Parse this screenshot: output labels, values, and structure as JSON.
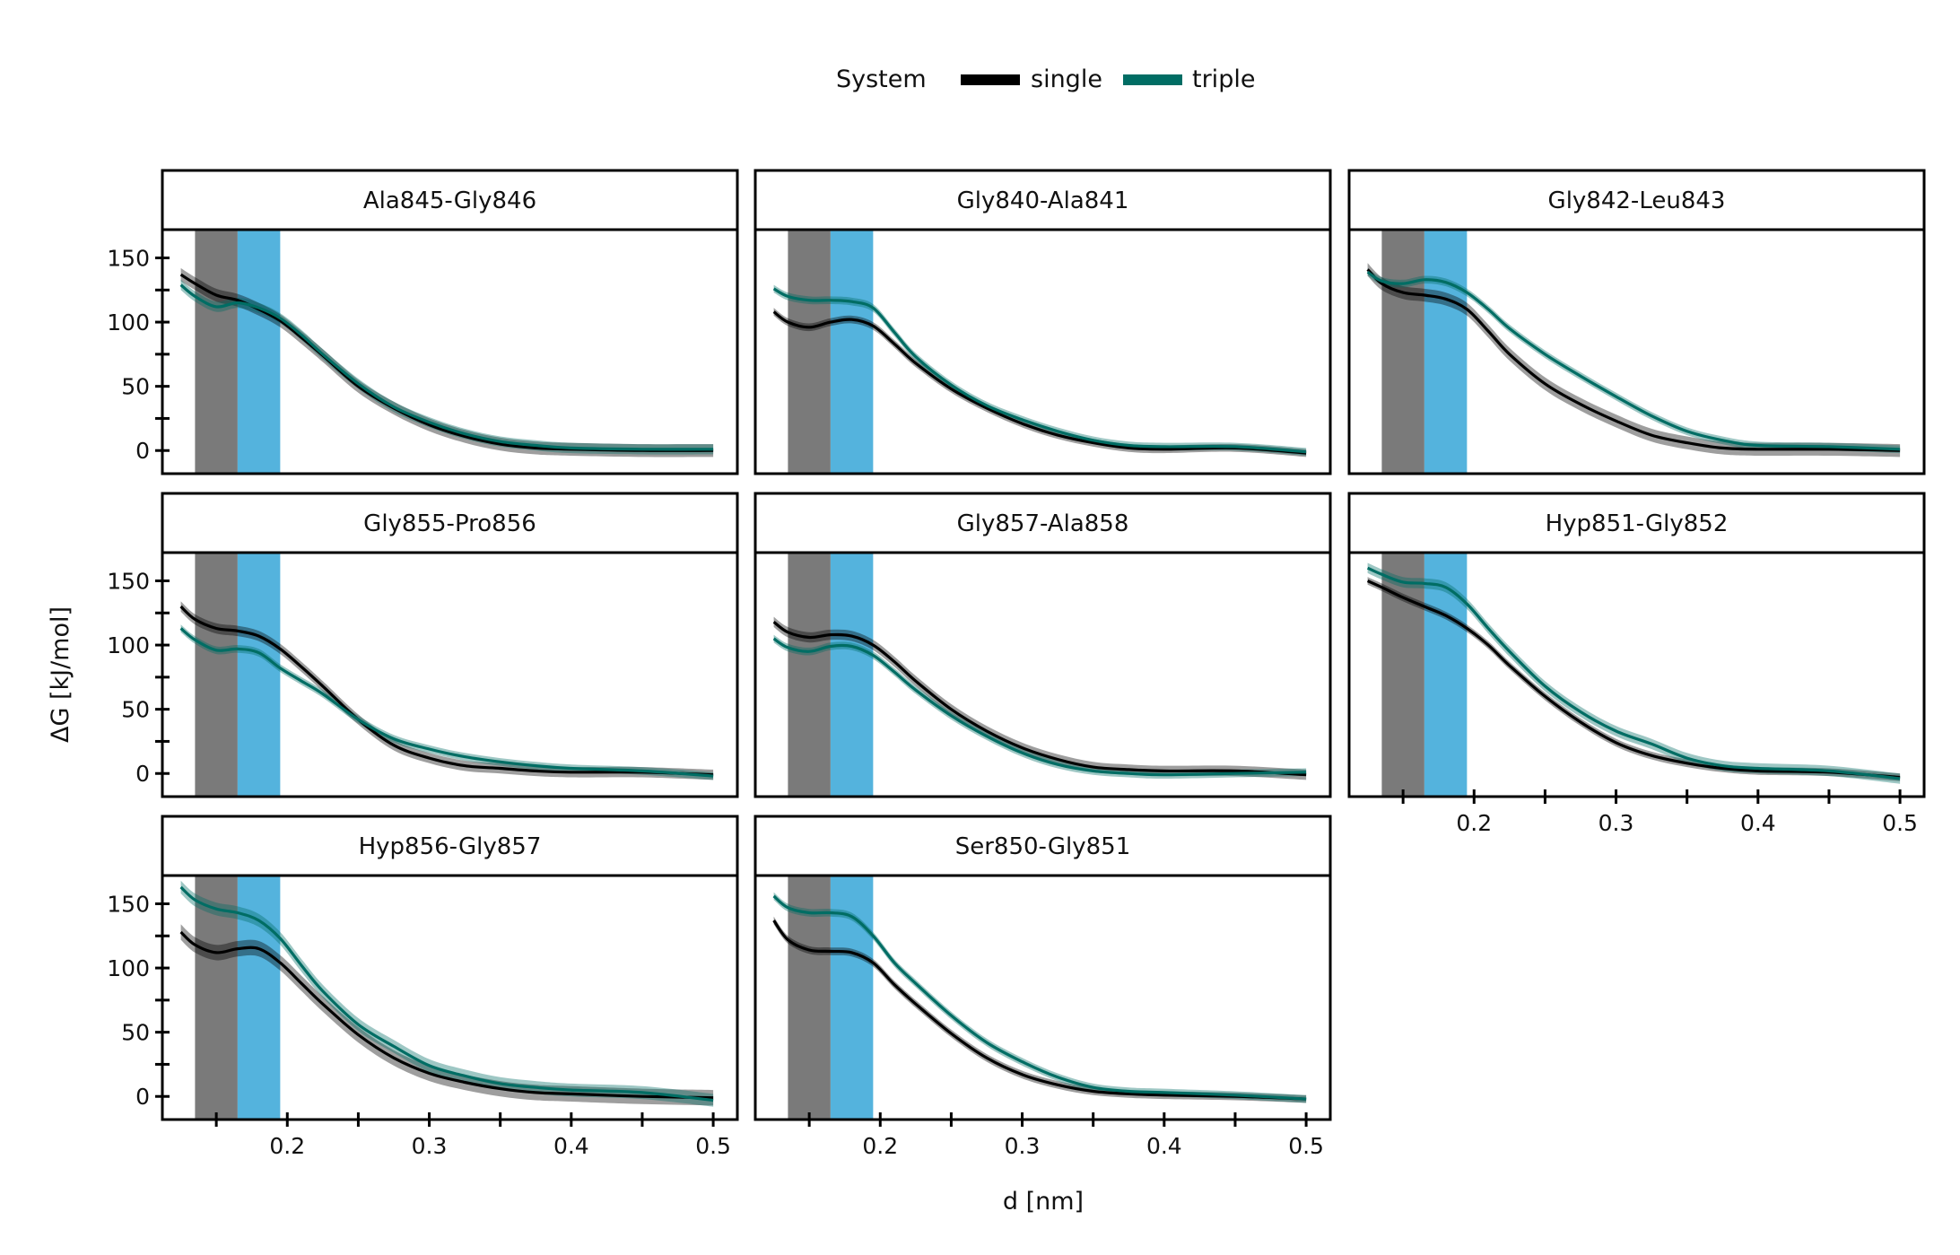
{
  "chart_data": {
    "type": "line",
    "title": "",
    "xlabel": "d [nm]",
    "ylabel": "ΔG [kJ/mol]",
    "xlim": [
      0.112,
      0.517
    ],
    "ylim": [
      -18,
      172
    ],
    "x_ticks": [
      0.2,
      0.3,
      0.4,
      0.5
    ],
    "x_tick_labels": [
      "0.2",
      "0.3",
      "0.4",
      "0.5"
    ],
    "x_minor_ticks": [
      0.15,
      0.25,
      0.35,
      0.45
    ],
    "y_ticks": [
      0,
      50,
      100,
      150
    ],
    "y_tick_labels": [
      "0",
      "50",
      "100",
      "150"
    ],
    "y_minor_ticks": [
      25,
      75,
      125
    ],
    "grid": false,
    "legend": {
      "title": "System",
      "position": "top-center",
      "entries": [
        {
          "label": "single",
          "color": "#000000"
        },
        {
          "label": "triple",
          "color": "#006d64"
        }
      ]
    },
    "shaded_regions": [
      {
        "name": "gray-band",
        "x_start": 0.135,
        "x_end": 0.165,
        "color": "#7a7a7a"
      },
      {
        "name": "blue-band",
        "x_start": 0.165,
        "x_end": 0.195,
        "color": "#54b3dd"
      }
    ],
    "x": [
      0.125,
      0.135,
      0.15,
      0.165,
      0.18,
      0.195,
      0.21,
      0.225,
      0.25,
      0.275,
      0.3,
      0.325,
      0.35,
      0.375,
      0.4,
      0.45,
      0.5
    ],
    "panels": [
      {
        "title": "Ala845-Gly846",
        "series": [
          {
            "name": "single",
            "values": [
              137,
              130,
              121,
              117,
              110,
              101,
              88,
              74,
              50,
              33,
              20,
              11,
              5,
              2,
              1,
              0,
              0
            ],
            "band": 5
          },
          {
            "name": "triple",
            "values": [
              129,
              120,
              112,
              115,
              111,
              103,
              90,
              75,
              52,
              34,
              22,
              13,
              7,
              4,
              2,
              1,
              1
            ],
            "band": 4
          }
        ]
      },
      {
        "title": "Gly840-Ala841",
        "series": [
          {
            "name": "single",
            "values": [
              108,
              100,
              96,
              100,
              102,
              97,
              83,
              68,
              48,
              33,
              21,
              12,
              6,
              2,
              1,
              2,
              -2
            ],
            "band": 3
          },
          {
            "name": "triple",
            "values": [
              126,
              120,
              117,
              117,
              116,
              111,
              92,
              73,
              51,
              35,
              24,
              15,
              8,
              4,
              3,
              3,
              -1
            ],
            "band": 3
          }
        ]
      },
      {
        "title": "Gly842-Leu843",
        "series": [
          {
            "name": "single",
            "values": [
              141,
              130,
              123,
              121,
              118,
              110,
              93,
              75,
              52,
              36,
              23,
              12,
              6,
              2,
              1,
              1,
              0
            ],
            "band": 5
          },
          {
            "name": "triple",
            "values": [
              139,
              132,
              130,
              133,
              131,
              123,
              110,
              95,
              75,
              58,
              42,
              27,
              15,
              8,
              4,
              3,
              1
            ],
            "band": 3
          }
        ]
      },
      {
        "title": "Gly855-Pro856",
        "series": [
          {
            "name": "single",
            "values": [
              130,
              120,
              113,
              111,
              107,
              97,
              83,
              68,
              42,
              22,
              12,
              6,
              4,
              2,
              1,
              1,
              -1
            ],
            "band": 4
          },
          {
            "name": "triple",
            "values": [
              113,
              104,
              96,
              97,
              94,
              82,
              72,
              62,
              42,
              27,
              19,
              13,
              9,
              6,
              4,
              2,
              -2
            ],
            "band": 3
          }
        ]
      },
      {
        "title": "Gly857-Ala858",
        "series": [
          {
            "name": "single",
            "values": [
              118,
              110,
              106,
              108,
              107,
              100,
              87,
              72,
              50,
              33,
              20,
              11,
              5,
              3,
              2,
              2,
              -1
            ],
            "band": 4
          },
          {
            "name": "triple",
            "values": [
              105,
              98,
              95,
              99,
              99,
              92,
              79,
              65,
              45,
              29,
              16,
              7,
              2,
              0,
              -1,
              0,
              1
            ],
            "band": 3
          }
        ]
      },
      {
        "title": "Hyp851-Gly852",
        "series": [
          {
            "name": "single",
            "values": [
              150,
              145,
              137,
              130,
              123,
              113,
              100,
              84,
              60,
              40,
              24,
              14,
              8,
              4,
              2,
              1,
              -3
            ],
            "band": 3
          },
          {
            "name": "triple",
            "values": [
              160,
              155,
              149,
              148,
              145,
              132,
              113,
              95,
              68,
              48,
              33,
              23,
              12,
              6,
              4,
              2,
              -4
            ],
            "band": 4
          }
        ]
      },
      {
        "title": "Hyp856-Gly857",
        "series": [
          {
            "name": "single",
            "values": [
              128,
              118,
              112,
              115,
              115,
              104,
              88,
              72,
              48,
              30,
              18,
              11,
              6,
              3,
              2,
              0,
              -1
            ],
            "band": 6
          },
          {
            "name": "triple",
            "values": [
              163,
              153,
              146,
              143,
              137,
              123,
              102,
              82,
              56,
              39,
              24,
              16,
              10,
              7,
              5,
              3,
              -3
            ],
            "band": 5
          }
        ]
      },
      {
        "title": "Ser850-Gly851",
        "series": [
          {
            "name": "single",
            "values": [
              137,
              122,
              114,
              113,
              112,
              104,
              87,
              72,
              49,
              30,
              17,
              9,
              4,
              2,
              1,
              0,
              -2
            ],
            "band": 3
          },
          {
            "name": "triple",
            "values": [
              156,
              147,
              143,
              143,
              140,
              125,
              104,
              88,
              63,
              42,
              27,
              15,
              7,
              4,
              3,
              1,
              -2
            ],
            "band": 3
          }
        ]
      }
    ]
  }
}
